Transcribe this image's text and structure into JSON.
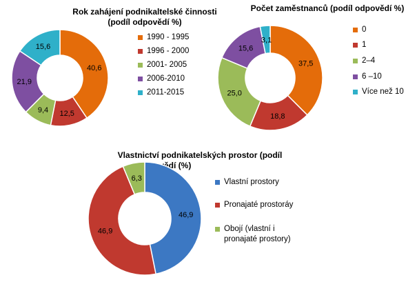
{
  "chart_data": [
    {
      "type": "pie",
      "title": "Rok zahájení podnikaltelské činnosti (podíl odpovědí %)",
      "categories": [
        "1990 - 1995",
        "1996 - 2000",
        "2001- 2005",
        "2006-2010",
        "2011-2015"
      ],
      "values": [
        40.6,
        12.5,
        9.4,
        21.9,
        15.6
      ],
      "labels": [
        "40,6",
        "12,5",
        "9,4",
        "21,9",
        "15,6"
      ],
      "colors": [
        "#E46C0A",
        "#C0392F",
        "#9BBB59",
        "#7E4FA1",
        "#2FB0C9"
      ],
      "legend": "right"
    },
    {
      "type": "pie",
      "title": "Počet zaměstnanců (podíl odpovědí %)",
      "categories": [
        "0",
        "1",
        "2–4",
        "6 –10",
        "Více než 10"
      ],
      "values": [
        37.5,
        18.8,
        25.0,
        15.6,
        3.1
      ],
      "labels": [
        "37,5",
        "18,8",
        "25,0",
        "15,6",
        "3,1"
      ],
      "colors": [
        "#E46C0A",
        "#C0392F",
        "#9BBB59",
        "#7E4FA1",
        "#2FB0C9"
      ],
      "legend": "right"
    },
    {
      "type": "pie",
      "title": "Vlastnictví podnikatelských prostor (podíl odpovědí (%)",
      "categories": [
        "Vlastní prostory",
        "Pronajaté prostoráy",
        "Obojí (vlastní i pronajaté prostory)"
      ],
      "values": [
        46.9,
        46.9,
        6.3
      ],
      "labels": [
        "46,9",
        "46,9",
        "6,3"
      ],
      "colors": [
        "#3C78C3",
        "#C0392F",
        "#9BBB59"
      ],
      "legend": "right"
    }
  ],
  "titles": {
    "c1_line1": "Rok zahájení podnikaltelské činnosti",
    "c1_line2": "(podíl odpovědí %)",
    "c2_line1": "Počet zaměstnanců (podíl odpovědí %)",
    "c3_line1": "Vlastnictví podnikatelských prostor (podíl",
    "c3_line2": "odpovědí (%)"
  },
  "legends": {
    "c1": [
      "1990 - 1995",
      "1996 - 2000",
      "2001- 2005",
      "2006-2010",
      "2011-2015"
    ],
    "c2": [
      "0",
      "1",
      "2–4",
      "6 –10",
      "Více než 10"
    ],
    "c3": [
      "Vlastní prostory",
      "Pronajaté prostoráy",
      "Obojí (vlastní i",
      "pronajaté prostory)"
    ]
  }
}
